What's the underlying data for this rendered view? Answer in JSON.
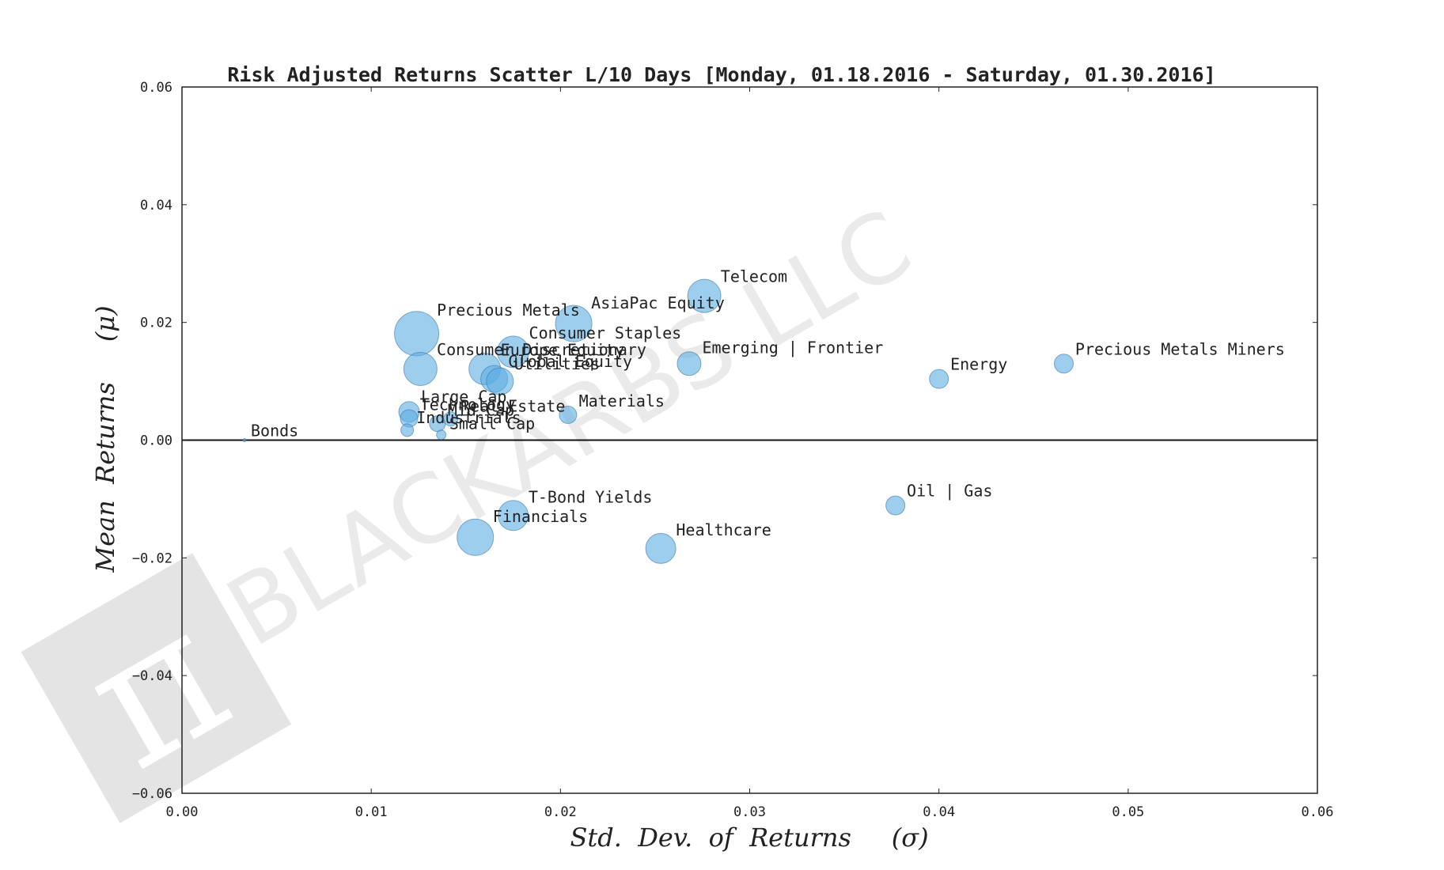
{
  "chart_data": {
    "type": "scatter",
    "title": "Risk Adjusted Returns Scatter L/10 Days [Monday, 01.18.2016 - Saturday, 01.30.2016]",
    "xlabel": "Std.  Dev.  of  Returns     (σ)",
    "ylabel": "Mean  Returns     (μ)",
    "xlim": [
      0.0,
      0.06
    ],
    "ylim": [
      -0.06,
      0.06
    ],
    "xticks": [
      "0.00",
      "0.01",
      "0.02",
      "0.03",
      "0.04",
      "0.05",
      "0.06"
    ],
    "yticks": [
      "−0.06",
      "−0.04",
      "−0.02",
      "0.00",
      "0.02",
      "0.04",
      "0.06"
    ],
    "xtick_values": [
      0.0,
      0.01,
      0.02,
      0.03,
      0.04,
      0.05,
      0.06
    ],
    "ytick_values": [
      -0.06,
      -0.04,
      -0.02,
      0.0,
      0.02,
      0.04,
      0.06
    ],
    "zero_line": true,
    "grid": false,
    "marker_color": "#5dade2",
    "marker_edge_color": "#3a78a8",
    "watermark": "BLACKARBS LLC",
    "points": [
      {
        "label": "Bonds",
        "x": 0.0033,
        "y": 0.0,
        "size": 2
      },
      {
        "label": "Precious Metals",
        "x": 0.0124,
        "y": 0.0181,
        "size": 28
      },
      {
        "label": "Consumer Discretionary",
        "x": 0.0126,
        "y": 0.0121,
        "size": 21
      },
      {
        "label": "Large Cap",
        "x": 0.012,
        "y": 0.0048,
        "size": 13
      },
      {
        "label": "Technology",
        "x": 0.012,
        "y": 0.0037,
        "size": 11
      },
      {
        "label": "Industrials",
        "x": 0.0119,
        "y": 0.0017,
        "size": 8
      },
      {
        "label": "Real Estate",
        "x": 0.0142,
        "y": 0.0036,
        "size": 9
      },
      {
        "label": "Mid Cap",
        "x": 0.0135,
        "y": 0.0028,
        "size": 10
      },
      {
        "label": "Small Cap",
        "x": 0.0137,
        "y": 0.0009,
        "size": 6
      },
      {
        "label": "Europe Equity",
        "x": 0.016,
        "y": 0.0121,
        "size": 20
      },
      {
        "label": "Global Equity",
        "x": 0.0165,
        "y": 0.0104,
        "size": 17
      },
      {
        "label": "Utilities",
        "x": 0.0168,
        "y": 0.01,
        "size": 17
      },
      {
        "label": "Consumer Staples",
        "x": 0.0175,
        "y": 0.015,
        "size": 20
      },
      {
        "label": "AsiaPac Equity",
        "x": 0.0207,
        "y": 0.0198,
        "size": 23
      },
      {
        "label": "Materials",
        "x": 0.0204,
        "y": 0.0043,
        "size": 11
      },
      {
        "label": "Telecom",
        "x": 0.0276,
        "y": 0.0245,
        "size": 21
      },
      {
        "label": "Emerging | Frontier",
        "x": 0.0268,
        "y": 0.013,
        "size": 15
      },
      {
        "label": "Energy",
        "x": 0.04,
        "y": 0.0104,
        "size": 12
      },
      {
        "label": "Precious Metals Miners",
        "x": 0.0466,
        "y": 0.013,
        "size": 12
      },
      {
        "label": "Oil | Gas",
        "x": 0.0377,
        "y": -0.0111,
        "size": 12
      },
      {
        "label": "T-Bond Yields",
        "x": 0.0175,
        "y": -0.0128,
        "size": 19
      },
      {
        "label": "Financials",
        "x": 0.0155,
        "y": -0.0165,
        "size": 23
      },
      {
        "label": "Healthcare",
        "x": 0.0253,
        "y": -0.0184,
        "size": 19
      }
    ]
  }
}
